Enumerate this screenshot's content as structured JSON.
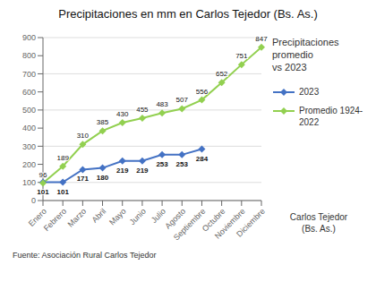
{
  "chart_data": {
    "type": "line",
    "title": "Precipitaciones en mm en Carlos Tejedor (Bs. As.)",
    "categories": [
      "Enero",
      "Febrero",
      "Marzo",
      "Abril",
      "Mayo",
      "Junio",
      "Julio",
      "Agosto",
      "Septiembre",
      "Octubre",
      "Noviembre",
      "Diciembre"
    ],
    "series": [
      {
        "name": "2023",
        "color": "#4472c4",
        "marker": "diamond",
        "values": [
          101,
          101,
          171,
          180,
          219,
          219,
          253,
          253,
          284,
          null,
          null,
          null
        ]
      },
      {
        "name": "Promedio 1924-\n2022",
        "color": "#92d050",
        "marker": "diamond",
        "values": [
          96,
          189,
          310,
          385,
          430,
          455,
          483,
          507,
          556,
          652,
          751,
          847
        ]
      }
    ],
    "ylim": [
      0,
      900
    ],
    "yticks": [
      0,
      100,
      200,
      300,
      400,
      500,
      600,
      700,
      800,
      900
    ],
    "grid": true,
    "data_labels": true,
    "annotations": [
      "Precipitaciones\npromedio\nvs 2023",
      "Carlos Tejedor\n(Bs. As.)",
      "Fuente: Asociación Rural Carlos Tejedor"
    ]
  }
}
